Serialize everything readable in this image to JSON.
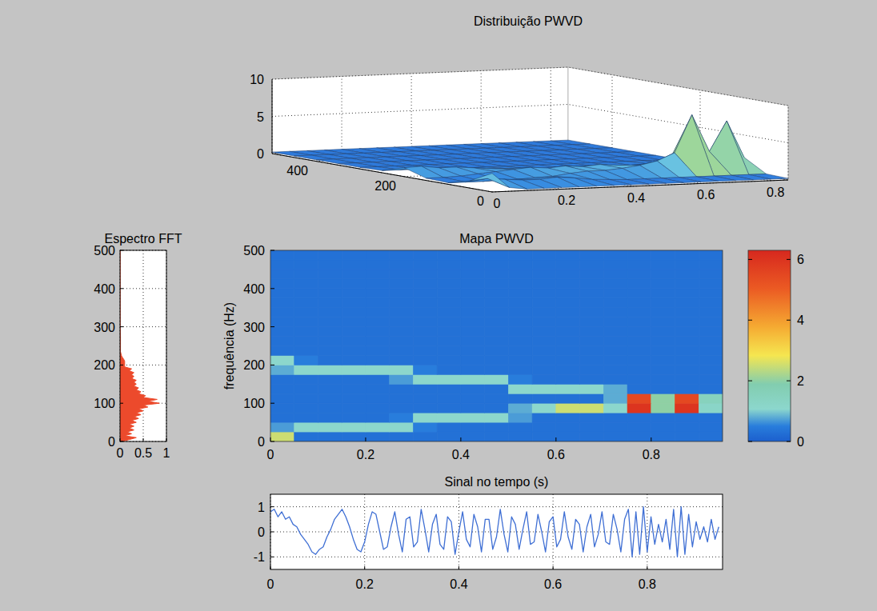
{
  "chart_data": [
    {
      "type": "surface",
      "title": "Distribuição PWVD",
      "x": [
        0,
        0.05,
        0.1,
        0.15,
        0.2,
        0.25,
        0.3,
        0.35,
        0.4,
        0.45,
        0.5,
        0.55,
        0.6,
        0.65,
        0.7,
        0.75,
        0.8,
        0.85
      ],
      "y": [
        0,
        50,
        100,
        150,
        200,
        250,
        300,
        350,
        400,
        450,
        500
      ],
      "z": [
        [
          2.5,
          0.5,
          0.2,
          0.2,
          0.2,
          0.2,
          0.2,
          0.2,
          0.2,
          0.2,
          0.2,
          0.2,
          0.2,
          0.2,
          0.2,
          0.2,
          0.2,
          0.2
        ],
        [
          1,
          1.2,
          1,
          0.8,
          0.8,
          1,
          0.8,
          0.5,
          0.4,
          0.3,
          0.3,
          0.3,
          0.3,
          0.3,
          0.3,
          0.3,
          0.3,
          0.3
        ],
        [
          0.2,
          0.2,
          0.2,
          0.3,
          0.3,
          0.4,
          0.5,
          0.8,
          1,
          1,
          1.2,
          1.5,
          2,
          3,
          8,
          3,
          7,
          2
        ],
        [
          0.3,
          0.3,
          0.4,
          0.6,
          0.8,
          1,
          1.2,
          1,
          1.2,
          1,
          1.2,
          1,
          0.8,
          1,
          1.5,
          1,
          1.2,
          0.8
        ],
        [
          1.2,
          1.3,
          1,
          1,
          0.8,
          0.6,
          0.5,
          0.4,
          0.3,
          0.3,
          0.4,
          0.3,
          0.3,
          0.3,
          0.4,
          0.3,
          0.3,
          0.3
        ],
        [
          0.3,
          0.3,
          0.3,
          0.3,
          0.3,
          0.2,
          0.2,
          0.2,
          0.2,
          0.2,
          0.2,
          0.2,
          0.2,
          0.2,
          0.2,
          0.2,
          0.2,
          0.2
        ],
        [
          0.2,
          0.2,
          0.2,
          0.2,
          0.2,
          0.2,
          0.2,
          0.2,
          0.2,
          0.2,
          0.2,
          0.2,
          0.2,
          0.2,
          0.2,
          0.2,
          0.2,
          0.2
        ],
        [
          0.2,
          0.2,
          0.2,
          0.2,
          0.2,
          0.2,
          0.2,
          0.2,
          0.2,
          0.2,
          0.2,
          0.2,
          0.2,
          0.2,
          0.2,
          0.2,
          0.2,
          0.2
        ],
        [
          0.2,
          0.2,
          0.2,
          0.2,
          0.2,
          0.2,
          0.2,
          0.2,
          0.2,
          0.2,
          0.2,
          0.2,
          0.2,
          0.2,
          0.2,
          0.2,
          0.2,
          0.2
        ],
        [
          0.2,
          0.2,
          0.2,
          0.2,
          0.2,
          0.2,
          0.2,
          0.2,
          0.2,
          0.2,
          0.2,
          0.2,
          0.2,
          0.2,
          0.2,
          0.2,
          0.2,
          0.2
        ],
        [
          0.2,
          0.2,
          0.2,
          0.2,
          0.2,
          0.2,
          0.2,
          0.2,
          0.2,
          0.2,
          0.2,
          0.2,
          0.2,
          0.2,
          0.2,
          0.2,
          0.2,
          0.2
        ]
      ],
      "xlim": [
        0,
        0.85
      ],
      "ylim": [
        0,
        500
      ],
      "zlim": [
        0,
        10
      ],
      "xticks": [
        0,
        0.2,
        0.4,
        0.6,
        0.8
      ],
      "yticks": [
        0,
        200,
        400
      ],
      "zticks": [
        0,
        5,
        10
      ],
      "grid": true
    },
    {
      "type": "area",
      "title": "Espectro FFT",
      "orientation": "horizontal",
      "color": "#ec4a2c",
      "x": [
        0,
        5,
        10,
        15,
        20,
        25,
        30,
        35,
        40,
        45,
        50,
        55,
        60,
        65,
        70,
        75,
        80,
        85,
        90,
        95,
        100,
        105,
        110,
        115,
        120,
        125,
        130,
        135,
        140,
        145,
        150,
        155,
        160,
        165,
        170,
        175,
        180,
        185,
        190,
        195,
        200,
        205,
        210,
        215,
        220,
        225,
        230,
        235,
        240,
        245,
        250,
        275,
        300,
        325,
        350,
        375,
        400,
        425,
        450,
        475,
        500
      ],
      "values": [
        0.05,
        0.2,
        0.35,
        0.1,
        0.25,
        0.15,
        0.3,
        0.2,
        0.3,
        0.2,
        0.35,
        0.25,
        0.4,
        0.3,
        0.45,
        0.35,
        0.5,
        0.4,
        0.6,
        0.5,
        0.85,
        0.6,
        0.8,
        0.5,
        0.55,
        0.4,
        0.45,
        0.35,
        0.4,
        0.3,
        0.35,
        0.3,
        0.35,
        0.25,
        0.3,
        0.25,
        0.3,
        0.2,
        0.25,
        0.1,
        0.1,
        0.1,
        0.1,
        0.08,
        0.05,
        0.03,
        0.02,
        0.01,
        0.01,
        0.01,
        0.01,
        0.01,
        0,
        0,
        0,
        0,
        0,
        0,
        0,
        0,
        0
      ],
      "xlim": [
        0,
        500
      ],
      "xticks": [
        0,
        100,
        200,
        300,
        400,
        500
      ],
      "ylim": [
        0,
        1
      ],
      "yticks": [
        0,
        0.5,
        1
      ],
      "grid": true
    },
    {
      "type": "heatmap",
      "title": "Mapa PWVD",
      "y_label": "frequência (Hz)",
      "x_edges": [
        0,
        0.05,
        0.1,
        0.15,
        0.2,
        0.25,
        0.3,
        0.35,
        0.4,
        0.45,
        0.5,
        0.55,
        0.6,
        0.65,
        0.7,
        0.75,
        0.8,
        0.85,
        0.9,
        0.95
      ],
      "y_edges": [
        0,
        25,
        50,
        75,
        100,
        125,
        150,
        175,
        200,
        225,
        250,
        275,
        300,
        325,
        350,
        375,
        400,
        425,
        450,
        475,
        500
      ],
      "cells": [
        [
          2.5,
          0.3,
          0.3,
          0.3,
          0.3,
          0.3,
          0.3,
          0.3,
          0.3,
          0.3,
          0.3,
          0.3,
          0.3,
          0.3,
          0.3,
          0.3,
          0.3,
          0.3,
          0.3
        ],
        [
          0.7,
          1.1,
          1.1,
          1.1,
          1.1,
          1.1,
          0.5,
          0.3,
          0.3,
          0.3,
          0.3,
          0.3,
          0.3,
          0.3,
          0.3,
          0.3,
          0.3,
          0.3,
          0.3
        ],
        [
          0.3,
          0.3,
          0.3,
          0.3,
          0.3,
          0.5,
          1.1,
          1.1,
          1.1,
          1.1,
          0.7,
          0.3,
          0.3,
          0.3,
          0.3,
          0.3,
          0.3,
          0.3,
          0.3
        ],
        [
          0.3,
          0.3,
          0.3,
          0.3,
          0.3,
          0.3,
          0.3,
          0.3,
          0.3,
          0.3,
          0.8,
          1.1,
          2.5,
          2.5,
          1.1,
          6,
          2,
          6,
          1.2
        ],
        [
          0.3,
          0.3,
          0.3,
          0.3,
          0.3,
          0.3,
          0.3,
          0.3,
          0.3,
          0.3,
          0.3,
          0.3,
          0.3,
          0.3,
          0.8,
          5.5,
          2,
          5.5,
          1.5
        ],
        [
          0.3,
          0.3,
          0.3,
          0.3,
          0.3,
          0.3,
          0.3,
          0.3,
          0.3,
          0.3,
          1.1,
          1.1,
          1.1,
          1.1,
          0.8,
          0.3,
          0.3,
          0.3,
          0.3
        ],
        [
          0.3,
          0.3,
          0.3,
          0.3,
          0.3,
          0.7,
          1.1,
          1.1,
          1.1,
          1.1,
          0.5,
          0.3,
          0.3,
          0.3,
          0.3,
          0.3,
          0.3,
          0.3,
          0.3
        ],
        [
          0.8,
          1.1,
          1.1,
          1.1,
          1.1,
          1.1,
          0.5,
          0.3,
          0.3,
          0.3,
          0.3,
          0.3,
          0.3,
          0.3,
          0.3,
          0.3,
          0.3,
          0.3,
          0.3
        ],
        [
          1.1,
          0.5,
          0.3,
          0.3,
          0.3,
          0.3,
          0.3,
          0.3,
          0.3,
          0.3,
          0.3,
          0.3,
          0.3,
          0.3,
          0.3,
          0.3,
          0.3,
          0.3,
          0.3
        ],
        [
          0.3,
          0.3,
          0.3,
          0.3,
          0.3,
          0.3,
          0.3,
          0.3,
          0.3,
          0.3,
          0.3,
          0.3,
          0.3,
          0.3,
          0.3,
          0.3,
          0.3,
          0.3,
          0.3
        ],
        [
          0.3,
          0.3,
          0.3,
          0.3,
          0.3,
          0.3,
          0.3,
          0.3,
          0.3,
          0.3,
          0.3,
          0.3,
          0.3,
          0.3,
          0.3,
          0.3,
          0.3,
          0.3,
          0.3
        ],
        [
          0.3,
          0.3,
          0.3,
          0.3,
          0.3,
          0.3,
          0.3,
          0.3,
          0.3,
          0.3,
          0.3,
          0.3,
          0.3,
          0.3,
          0.3,
          0.3,
          0.3,
          0.3,
          0.3
        ],
        [
          0.3,
          0.3,
          0.3,
          0.3,
          0.3,
          0.3,
          0.3,
          0.3,
          0.3,
          0.3,
          0.3,
          0.3,
          0.3,
          0.3,
          0.3,
          0.3,
          0.3,
          0.3,
          0.3
        ],
        [
          0.3,
          0.3,
          0.3,
          0.3,
          0.3,
          0.3,
          0.3,
          0.3,
          0.3,
          0.3,
          0.3,
          0.3,
          0.3,
          0.3,
          0.3,
          0.3,
          0.3,
          0.3,
          0.3
        ],
        [
          0.3,
          0.3,
          0.3,
          0.3,
          0.3,
          0.3,
          0.3,
          0.3,
          0.3,
          0.3,
          0.3,
          0.3,
          0.3,
          0.3,
          0.3,
          0.3,
          0.3,
          0.3,
          0.3
        ],
        [
          0.3,
          0.3,
          0.3,
          0.3,
          0.3,
          0.3,
          0.3,
          0.3,
          0.3,
          0.3,
          0.3,
          0.3,
          0.3,
          0.3,
          0.3,
          0.3,
          0.3,
          0.3,
          0.3
        ],
        [
          0.3,
          0.3,
          0.3,
          0.3,
          0.3,
          0.3,
          0.3,
          0.3,
          0.3,
          0.3,
          0.3,
          0.3,
          0.3,
          0.3,
          0.3,
          0.3,
          0.3,
          0.3,
          0.3
        ],
        [
          0.3,
          0.3,
          0.3,
          0.3,
          0.3,
          0.3,
          0.3,
          0.3,
          0.3,
          0.3,
          0.3,
          0.3,
          0.3,
          0.3,
          0.3,
          0.3,
          0.3,
          0.3,
          0.3
        ],
        [
          0.3,
          0.3,
          0.3,
          0.3,
          0.3,
          0.3,
          0.3,
          0.3,
          0.3,
          0.3,
          0.3,
          0.3,
          0.3,
          0.3,
          0.3,
          0.3,
          0.3,
          0.3,
          0.3
        ],
        [
          0.3,
          0.3,
          0.3,
          0.3,
          0.3,
          0.3,
          0.3,
          0.3,
          0.3,
          0.3,
          0.3,
          0.3,
          0.3,
          0.3,
          0.3,
          0.3,
          0.3,
          0.3,
          0.3
        ]
      ],
      "xlim": [
        0,
        0.95
      ],
      "ylim": [
        0,
        500
      ],
      "xticks": [
        0,
        0.2,
        0.4,
        0.6,
        0.8
      ],
      "yticks": [
        0,
        100,
        200,
        300,
        400,
        500
      ],
      "grid": false,
      "colorbar_lim": [
        0,
        6.3
      ],
      "colorbar_ticks": [
        0,
        2,
        4,
        6
      ]
    },
    {
      "type": "line",
      "title": "Sinal no tempo (s)",
      "color": "#3f6fd4",
      "x": [
        0,
        0.008,
        0.016,
        0.024,
        0.032,
        0.04,
        0.048,
        0.056,
        0.064,
        0.072,
        0.08,
        0.088,
        0.096,
        0.104,
        0.112,
        0.12,
        0.128,
        0.136,
        0.144,
        0.152,
        0.16,
        0.168,
        0.176,
        0.184,
        0.192,
        0.2,
        0.208,
        0.216,
        0.224,
        0.232,
        0.24,
        0.248,
        0.256,
        0.264,
        0.272,
        0.28,
        0.288,
        0.296,
        0.304,
        0.312,
        0.32,
        0.328,
        0.336,
        0.344,
        0.352,
        0.36,
        0.368,
        0.376,
        0.384,
        0.392,
        0.4,
        0.408,
        0.416,
        0.424,
        0.432,
        0.44,
        0.448,
        0.456,
        0.464,
        0.472,
        0.48,
        0.488,
        0.496,
        0.504,
        0.512,
        0.52,
        0.528,
        0.536,
        0.544,
        0.552,
        0.56,
        0.568,
        0.576,
        0.584,
        0.592,
        0.6,
        0.608,
        0.616,
        0.624,
        0.632,
        0.64,
        0.648,
        0.656,
        0.664,
        0.672,
        0.68,
        0.688,
        0.696,
        0.704,
        0.712,
        0.72,
        0.728,
        0.736,
        0.744,
        0.752,
        0.76,
        0.768,
        0.776,
        0.784,
        0.792,
        0.8,
        0.808,
        0.816,
        0.824,
        0.832,
        0.84,
        0.848,
        0.856,
        0.864,
        0.872,
        0.88,
        0.888,
        0.896,
        0.904,
        0.912,
        0.92,
        0.928,
        0.936,
        0.944,
        0.952
      ],
      "values": [
        0.8,
        0.9,
        0.6,
        0.8,
        0.5,
        0.6,
        0.3,
        0.2,
        -0.1,
        -0.3,
        -0.5,
        -0.8,
        -0.9,
        -0.7,
        -0.6,
        -0.2,
        0.1,
        0.5,
        0.7,
        0.9,
        0.6,
        0.2,
        -0.3,
        -0.7,
        -0.8,
        -0.4,
        0.3,
        0.8,
        0.7,
        0,
        -0.7,
        -0.6,
        0.2,
        0.8,
        -0.1,
        -0.8,
        0.5,
        0.6,
        -0.6,
        -0.4,
        0.9,
        0.1,
        -0.8,
        0.3,
        0.7,
        -0.5,
        -0.7,
        0.6,
        0.4,
        -0.9,
        0,
        0.8,
        -0.3,
        -0.6,
        0.7,
        0.2,
        -0.8,
        0.5,
        0.5,
        -0.7,
        -0.2,
        0.9,
        -0.1,
        -0.8,
        0.6,
        0.3,
        -0.7,
        0.1,
        0.8,
        -0.5,
        -0.4,
        0.7,
        0,
        -0.8,
        0.4,
        0.6,
        -0.6,
        -0.3,
        0.8,
        -0.2,
        -0.7,
        0.5,
        0.3,
        -0.8,
        0.2,
        0.7,
        -0.6,
        -0.1,
        0.8,
        -0.4,
        -0.5,
        0.7,
        0.1,
        -0.8,
        0.5,
        0.9,
        -1,
        0.8,
        -0.9,
        1,
        -0.8,
        0.6,
        -0.5,
        0.3,
        -0.4,
        0.5,
        -0.7,
        0.9,
        -1,
        1,
        -0.9,
        0.7,
        -0.6,
        0.4,
        -0.3,
        0.2,
        -0.4,
        0.5,
        -0.3,
        0.2
      ],
      "xlim": [
        0,
        0.96
      ],
      "ylim": [
        -1.5,
        1.5
      ],
      "xticks": [
        0,
        0.2,
        0.4,
        0.6,
        0.8
      ],
      "yticks": [
        -1,
        0,
        1
      ],
      "grid": true
    }
  ]
}
